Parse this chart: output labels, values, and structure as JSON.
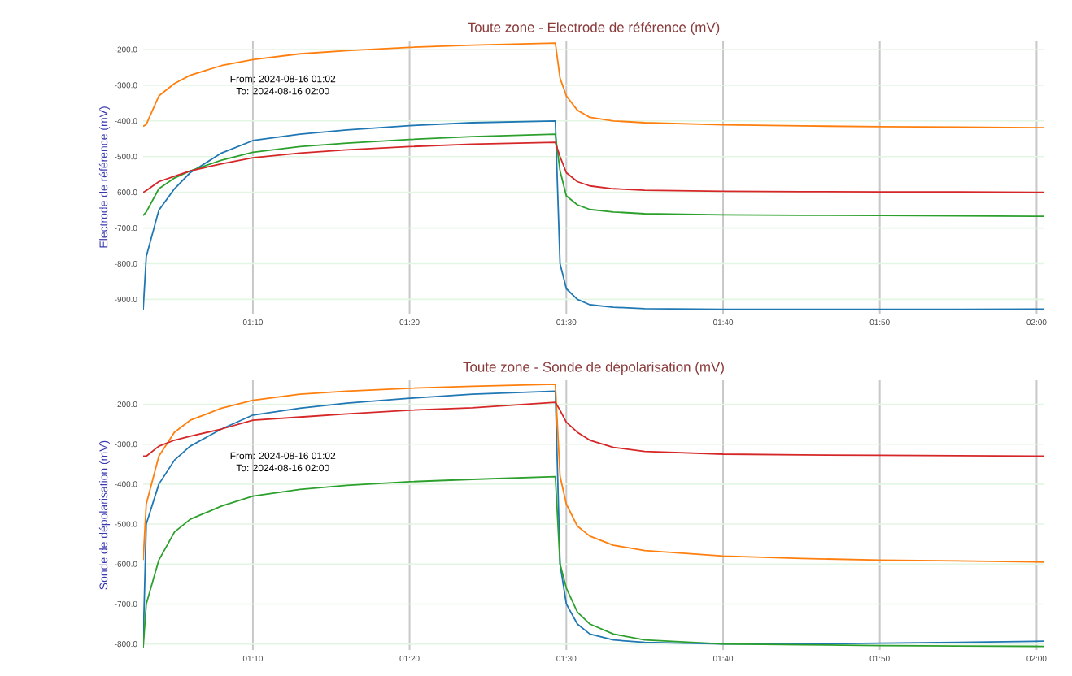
{
  "chart_data": [
    {
      "type": "line",
      "title": "Toute zone - Electrode de référence (mV)",
      "ylabel": "Electrode de référence (mV)",
      "annotations": [
        "From: 2024-08-16 01:02",
        "To: 2024-08-16 02:00"
      ],
      "x": [
        1.05,
        1.0533,
        1.0667,
        1.0833,
        1.1,
        1.1333,
        1.1667,
        1.2167,
        1.2667,
        1.3333,
        1.4,
        1.4883,
        1.4933,
        1.5,
        1.5117,
        1.525,
        1.55,
        1.5833,
        1.6667,
        1.75,
        1.8333,
        1.9167,
        2.0083
      ],
      "series": [
        {
          "color": "#1f77b4",
          "values": [
            -930,
            -780,
            -650,
            -590,
            -545,
            -490,
            -455,
            -437,
            -425,
            -413,
            -405,
            -400,
            -800,
            -870,
            -900,
            -915,
            -922,
            -926,
            -928,
            -928,
            -928,
            -928,
            -927
          ]
        },
        {
          "color": "#ff7f0e",
          "values": [
            -415,
            -410,
            -330,
            -295,
            -272,
            -245,
            -228,
            -212,
            -203,
            -194,
            -188,
            -182,
            -280,
            -330,
            -370,
            -390,
            -400,
            -405,
            -411,
            -414,
            -416,
            -417,
            -419
          ]
        },
        {
          "color": "#2ca02c",
          "values": [
            -665,
            -655,
            -590,
            -560,
            -540,
            -510,
            -488,
            -472,
            -462,
            -452,
            -444,
            -437,
            -540,
            -610,
            -635,
            -648,
            -655,
            -660,
            -663,
            -664,
            -665,
            -666,
            -667
          ]
        },
        {
          "color": "#d62728",
          "values": [
            -600,
            -595,
            -570,
            -555,
            -540,
            -520,
            -503,
            -490,
            -481,
            -472,
            -465,
            -460,
            -500,
            -545,
            -570,
            -582,
            -590,
            -594,
            -597,
            -598,
            -599,
            -599,
            -600
          ]
        }
      ],
      "xlim": [
        1.05,
        2.0083
      ],
      "xticks": [
        {
          "value": 1.1667,
          "label": "01:10"
        },
        {
          "value": 1.3333,
          "label": "01:20"
        },
        {
          "value": 1.5,
          "label": "01:30"
        },
        {
          "value": 1.6667,
          "label": "01:40"
        },
        {
          "value": 1.8333,
          "label": "01:50"
        },
        {
          "value": 2.0,
          "label": "02:00"
        }
      ],
      "ylim": [
        -940,
        -175
      ],
      "yticks": [
        {
          "value": -900,
          "label": "-900.0"
        },
        {
          "value": -800,
          "label": "-800.0"
        },
        {
          "value": -700,
          "label": "-700.0"
        },
        {
          "value": -600,
          "label": "-600.0"
        },
        {
          "value": -500,
          "label": "-500.0"
        },
        {
          "value": -400,
          "label": "-400.0"
        },
        {
          "value": -300,
          "label": "-300.0"
        },
        {
          "value": -200,
          "label": "-200.0"
        }
      ],
      "grid": true,
      "marker": "none",
      "line_style": "solid"
    },
    {
      "type": "line",
      "title": "Toute zone - Sonde de dépolarisation (mV)",
      "ylabel": "Sonde de dépolarisation (mV)",
      "annotations": [
        "From: 2024-08-16 01:02",
        "To: 2024-08-16 02:00"
      ],
      "x": [
        1.05,
        1.0533,
        1.0667,
        1.0833,
        1.1,
        1.1333,
        1.1667,
        1.2167,
        1.2667,
        1.3333,
        1.4,
        1.4883,
        1.4933,
        1.5,
        1.5117,
        1.525,
        1.55,
        1.5833,
        1.6667,
        1.75,
        1.8333,
        1.9167,
        2.0083
      ],
      "series": [
        {
          "color": "#1f77b4",
          "values": [
            -800,
            -500,
            -400,
            -340,
            -305,
            -262,
            -227,
            -210,
            -197,
            -185,
            -175,
            -167,
            -600,
            -700,
            -750,
            -775,
            -790,
            -796,
            -800,
            -800,
            -798,
            -796,
            -793
          ]
        },
        {
          "color": "#ff7f0e",
          "values": [
            -590,
            -450,
            -330,
            -270,
            -240,
            -210,
            -190,
            -175,
            -167,
            -160,
            -155,
            -150,
            -380,
            -450,
            -505,
            -530,
            -553,
            -566,
            -580,
            -586,
            -590,
            -592,
            -595
          ]
        },
        {
          "color": "#2ca02c",
          "values": [
            -810,
            -700,
            -590,
            -520,
            -488,
            -455,
            -430,
            -413,
            -403,
            -394,
            -388,
            -381,
            -600,
            -660,
            -720,
            -750,
            -775,
            -790,
            -800,
            -802,
            -804,
            -805,
            -806
          ]
        },
        {
          "color": "#d62728",
          "values": [
            -330,
            -330,
            -305,
            -290,
            -280,
            -262,
            -240,
            -232,
            -224,
            -215,
            -209,
            -195,
            -215,
            -245,
            -270,
            -290,
            -308,
            -318,
            -325,
            -327,
            -328,
            -329,
            -330
          ]
        }
      ],
      "xlim": [
        1.05,
        2.0083
      ],
      "xticks": [
        {
          "value": 1.1667,
          "label": "01:10"
        },
        {
          "value": 1.3333,
          "label": "01:20"
        },
        {
          "value": 1.5,
          "label": "01:30"
        },
        {
          "value": 1.6667,
          "label": "01:40"
        },
        {
          "value": 1.8333,
          "label": "01:50"
        },
        {
          "value": 2.0,
          "label": "02:00"
        }
      ],
      "ylim": [
        -815,
        -140
      ],
      "yticks": [
        {
          "value": -800,
          "label": "-800.0"
        },
        {
          "value": -700,
          "label": "-700.0"
        },
        {
          "value": -600,
          "label": "-600.0"
        },
        {
          "value": -500,
          "label": "-500.0"
        },
        {
          "value": -400,
          "label": "-400.0"
        },
        {
          "value": -300,
          "label": "-300.0"
        },
        {
          "value": -200,
          "label": "-200.0"
        }
      ],
      "grid": true,
      "marker": "none",
      "line_style": "solid"
    }
  ]
}
